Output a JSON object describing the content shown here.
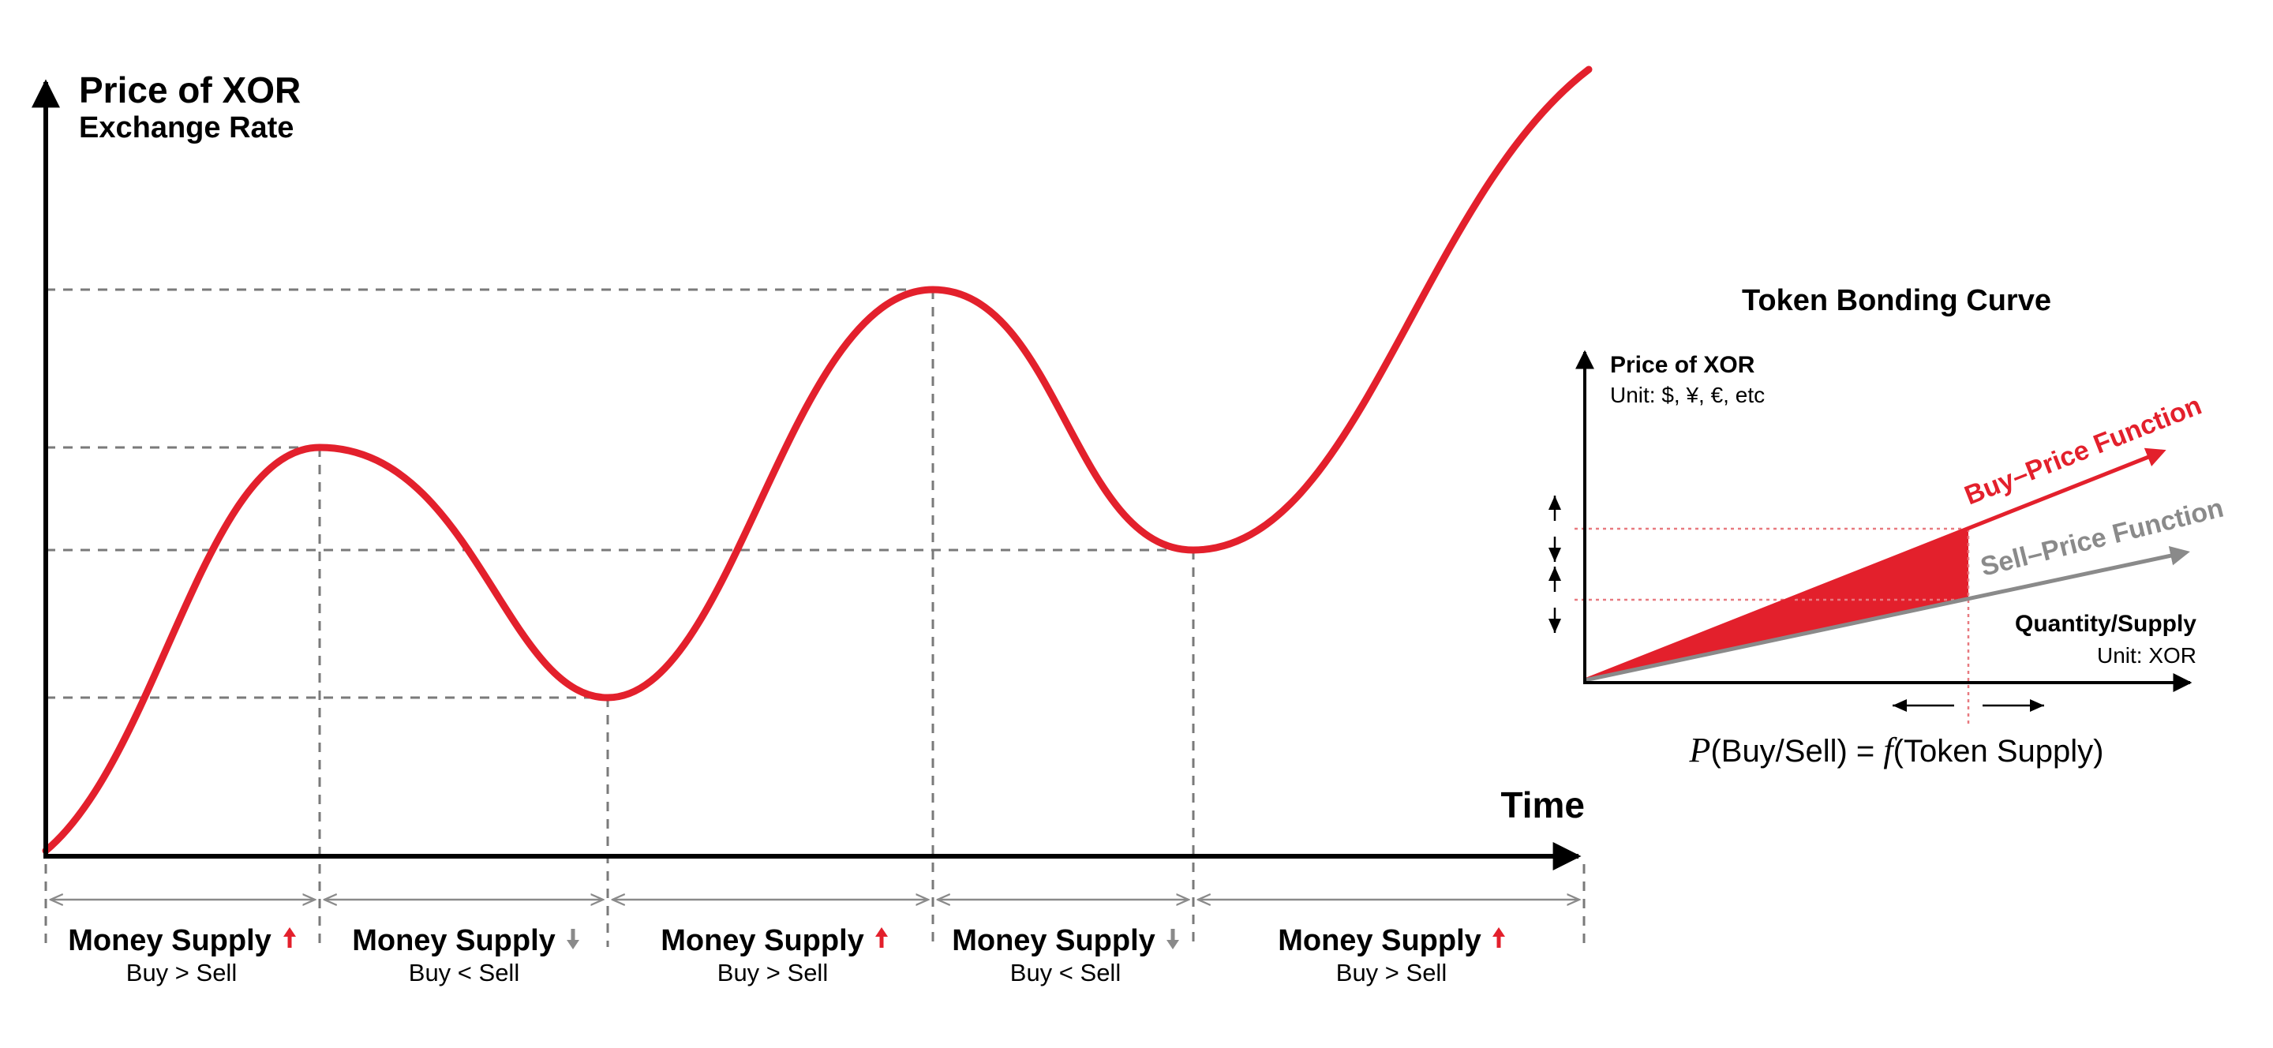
{
  "colors": {
    "accent_red": "#e3202c",
    "neutral_gray": "#8a8a8a",
    "axis": "#000000",
    "guide": "#7a7a7a",
    "pink_guide": "#e87a80"
  },
  "main_chart": {
    "y_title": "Price of XOR",
    "y_subtitle": "Exchange Rate",
    "x_title": "Time"
  },
  "segments": [
    {
      "title": "Money Supply",
      "trend": "up",
      "trend_icon": "arrow-up-icon",
      "subtitle": "Buy > Sell"
    },
    {
      "title": "Money Supply",
      "trend": "down",
      "trend_icon": "arrow-down-icon",
      "subtitle": "Buy < Sell"
    },
    {
      "title": "Money Supply",
      "trend": "up",
      "trend_icon": "arrow-up-icon",
      "subtitle": "Buy > Sell"
    },
    {
      "title": "Money Supply",
      "trend": "down",
      "trend_icon": "arrow-down-icon",
      "subtitle": "Buy < Sell"
    },
    {
      "title": "Money Supply",
      "trend": "up",
      "trend_icon": "arrow-up-icon",
      "subtitle": "Buy > Sell"
    }
  ],
  "inset": {
    "title": "Token Bonding Curve",
    "y_label": "Price of XOR",
    "y_unit": "Unit: $, ¥, €, etc",
    "x_label": "Quantity/Supply",
    "x_unit": "Unit: XOR",
    "buy_label": "Buy–Price Function",
    "sell_label": "Sell–Price Function",
    "formula": {
      "p_symbol": "P",
      "p_args": "(Buy/Sell) = ",
      "f_symbol": "f",
      "f_args": "(Token Supply)"
    }
  }
}
